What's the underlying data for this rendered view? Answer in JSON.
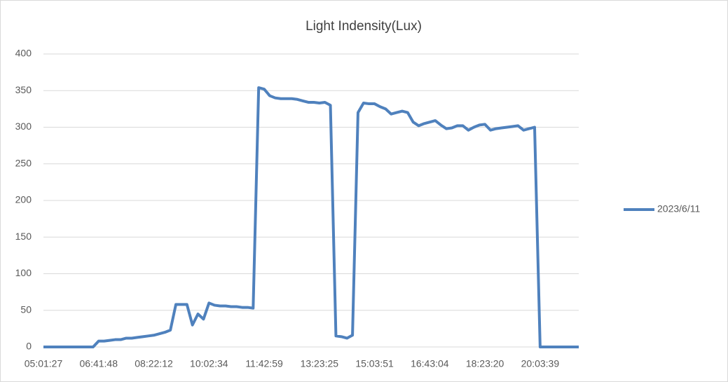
{
  "chart_data": {
    "type": "line",
    "title": "Light Indensity(Lux)",
    "categories": [
      "05:01:27",
      null,
      null,
      null,
      null,
      null,
      null,
      null,
      null,
      null,
      "06:41:48",
      null,
      null,
      null,
      null,
      null,
      null,
      null,
      null,
      null,
      "08:22:12",
      null,
      null,
      null,
      null,
      null,
      null,
      null,
      null,
      null,
      "10:02:34",
      null,
      null,
      null,
      null,
      null,
      null,
      null,
      null,
      null,
      "11:42:59",
      null,
      null,
      null,
      null,
      null,
      null,
      null,
      null,
      null,
      "13:23:25",
      null,
      null,
      null,
      null,
      null,
      null,
      null,
      null,
      null,
      "15:03:51",
      null,
      null,
      null,
      null,
      null,
      null,
      null,
      null,
      null,
      "16:43:04",
      null,
      null,
      null,
      null,
      null,
      null,
      null,
      null,
      null,
      "18:23:20",
      null,
      null,
      null,
      null,
      null,
      null,
      null,
      null,
      null,
      "20:03:39",
      null,
      null,
      null,
      null,
      null,
      null,
      null
    ],
    "series": [
      {
        "name": "2023/6/11",
        "color": "#4f81bd",
        "values": [
          0,
          0,
          0,
          0,
          0,
          0,
          0,
          0,
          0,
          0,
          8,
          8,
          9,
          10,
          10,
          12,
          12,
          13,
          14,
          15,
          16,
          18,
          20,
          23,
          58,
          58,
          58,
          30,
          45,
          38,
          60,
          57,
          56,
          56,
          55,
          55,
          54,
          54,
          53,
          354,
          352,
          343,
          340,
          339,
          339,
          339,
          338,
          336,
          334,
          334,
          333,
          334,
          330,
          15,
          14,
          12,
          16,
          320,
          333,
          332,
          332,
          328,
          325,
          318,
          320,
          322,
          320,
          307,
          302,
          305,
          307,
          309,
          303,
          298,
          299,
          302,
          302,
          296,
          300,
          303,
          304,
          296,
          298,
          299,
          300,
          301,
          302,
          296,
          298,
          300,
          0,
          0,
          0,
          0,
          0,
          0,
          0,
          0
        ]
      }
    ],
    "ylim": [
      0,
      400
    ],
    "yticks": [
      0,
      50,
      100,
      150,
      200,
      250,
      300,
      350,
      400
    ],
    "grid": true,
    "legend": "right"
  }
}
